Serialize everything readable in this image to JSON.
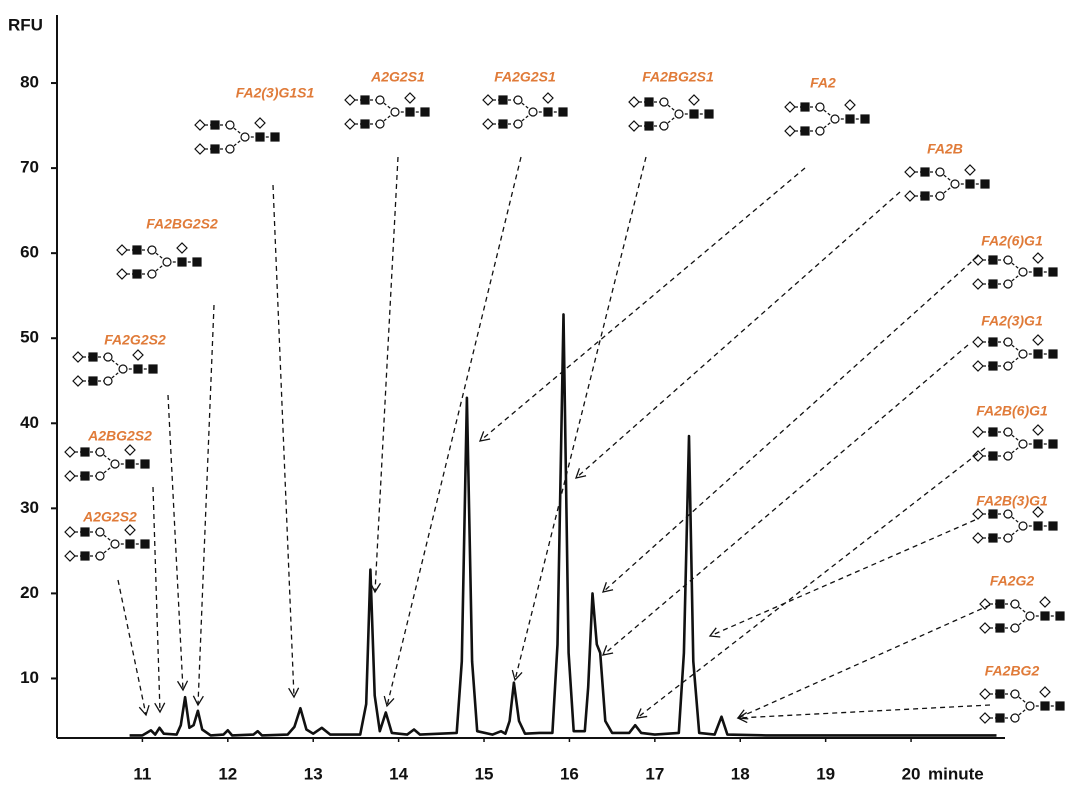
{
  "chart_data": {
    "type": "line",
    "ylabel": "RFU",
    "xlabel": "minute",
    "xlim": [
      10,
      21.1
    ],
    "ylim": [
      3,
      88
    ],
    "xticks": [
      11,
      12,
      13,
      14,
      15,
      16,
      17,
      18,
      19,
      20
    ],
    "yticks": [
      10,
      20,
      30,
      40,
      50,
      60,
      70,
      80
    ],
    "series": [
      {
        "color": "#111111",
        "x": [
          10.85,
          11.0,
          11.05,
          11.1,
          11.15,
          11.2,
          11.25,
          11.4,
          11.45,
          11.5,
          11.55,
          11.6,
          11.65,
          11.7,
          11.8,
          11.95,
          12.0,
          12.05,
          12.3,
          12.35,
          12.4,
          12.7,
          12.78,
          12.85,
          12.92,
          13.0,
          13.1,
          13.2,
          13.55,
          13.62,
          13.67,
          13.72,
          13.78,
          13.85,
          13.92,
          14.1,
          14.18,
          14.25,
          14.68,
          14.74,
          14.8,
          14.86,
          14.92,
          15.1,
          15.2,
          15.25,
          15.3,
          15.35,
          15.41,
          15.48,
          15.65,
          15.8,
          15.86,
          15.93,
          15.99,
          16.05,
          16.18,
          16.22,
          16.27,
          16.32,
          16.36,
          16.42,
          16.5,
          16.7,
          16.77,
          16.84,
          17.0,
          17.28,
          17.34,
          17.4,
          17.45,
          17.52,
          17.7,
          17.78,
          17.85,
          18.3,
          21.0
        ],
        "values": [
          3.3,
          3.3,
          3.6,
          3.9,
          3.4,
          4.2,
          3.5,
          3.4,
          4.5,
          7.8,
          4.2,
          4.5,
          6.2,
          4.0,
          3.3,
          3.4,
          3.9,
          3.3,
          3.4,
          3.8,
          3.3,
          3.4,
          4.3,
          6.5,
          4.0,
          3.5,
          4.2,
          3.4,
          3.4,
          7,
          22.8,
          8,
          3.8,
          6,
          3.6,
          3.4,
          4.0,
          3.4,
          3.6,
          12,
          43,
          12,
          3.8,
          3.4,
          3.8,
          3.5,
          5,
          9.5,
          5,
          3.5,
          3.6,
          3.6,
          14,
          52.8,
          13,
          3.8,
          3.8,
          9,
          20,
          14,
          13,
          5,
          3.6,
          3.6,
          4.5,
          3.6,
          3.4,
          3.6,
          13,
          38.5,
          12,
          3.6,
          3.4,
          5.5,
          3.4,
          3.3,
          3.3
        ]
      }
    ],
    "annotations": [
      "A2G2S2",
      "A2BG2S2",
      "FA2G2S2",
      "FA2BG2S2",
      "FA2(3)G1S1",
      "A2G2S1",
      "FA2G2S1",
      "FA2BG2S1",
      "FA2",
      "FA2B",
      "FA2(6)G1",
      "FA2(3)G1",
      "FA2B(6)G1",
      "FA2B(3)G1",
      "FA2G2",
      "FA2BG2"
    ]
  }
}
